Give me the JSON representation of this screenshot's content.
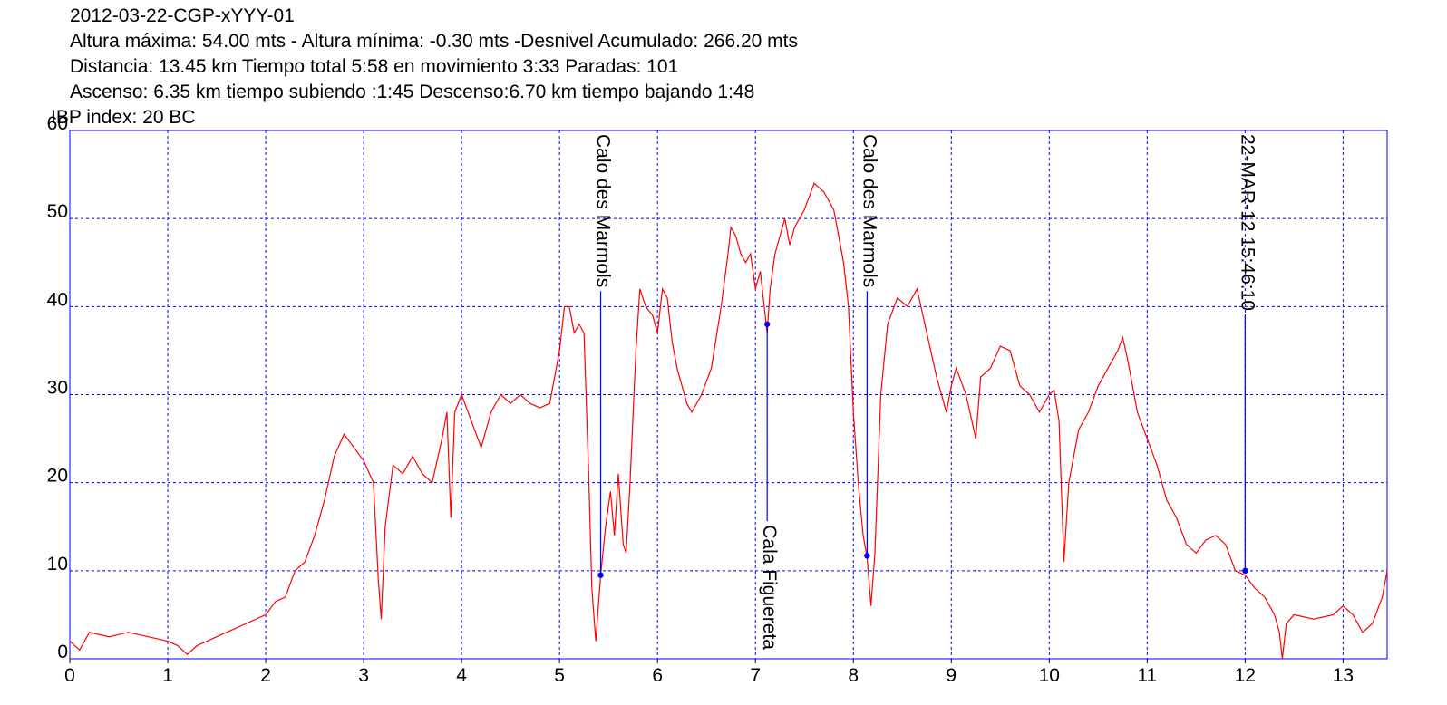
{
  "chart_data": {
    "type": "line",
    "title": "2012-03-22-CGP-xYYY-01",
    "subtitle": [
      "Altura máxima: 54.00 mts - Altura mínima: -0.30 mts -Desnivel Acumulado: 266.20 mts",
      "Distancia: 13.45 km  Tiempo total 5:58  en movimiento 3:33 Paradas: 101",
      "Ascenso: 6.35 km  tiempo subiendo :1:45  Descenso:6.70 km tiempo bajando 1:48",
      "IBP index: 20 BC"
    ],
    "color": "#ff0000",
    "x": [
      0,
      0.1,
      0.2,
      0.4,
      0.6,
      0.8,
      1.0,
      1.1,
      1.2,
      1.3,
      1.4,
      1.6,
      1.8,
      2.0,
      2.1,
      2.2,
      2.3,
      2.4,
      2.5,
      2.6,
      2.7,
      2.8,
      2.9,
      3.0,
      3.1,
      3.15,
      3.18,
      3.22,
      3.3,
      3.4,
      3.5,
      3.6,
      3.7,
      3.8,
      3.85,
      3.89,
      3.93,
      4.0,
      4.1,
      4.2,
      4.3,
      4.4,
      4.5,
      4.6,
      4.7,
      4.8,
      4.9,
      5.0,
      5.05,
      5.1,
      5.15,
      5.2,
      5.25,
      5.3,
      5.33,
      5.37,
      5.42,
      5.47,
      5.52,
      5.56,
      5.6,
      5.65,
      5.68,
      5.72,
      5.78,
      5.82,
      5.88,
      5.95,
      6.0,
      6.05,
      6.1,
      6.15,
      6.2,
      6.3,
      6.35,
      6.45,
      6.55,
      6.65,
      6.72,
      6.75,
      6.8,
      6.85,
      6.9,
      6.95,
      7.0,
      7.05,
      7.1,
      7.12,
      7.15,
      7.2,
      7.25,
      7.3,
      7.35,
      7.4,
      7.5,
      7.6,
      7.7,
      7.8,
      7.9,
      7.95,
      8.0,
      8.05,
      8.1,
      8.14,
      8.18,
      8.22,
      8.28,
      8.35,
      8.45,
      8.55,
      8.65,
      8.75,
      8.85,
      8.95,
      9.0,
      9.05,
      9.15,
      9.25,
      9.3,
      9.4,
      9.5,
      9.6,
      9.7,
      9.8,
      9.9,
      10.0,
      10.05,
      10.1,
      10.15,
      10.2,
      10.3,
      10.4,
      10.5,
      10.6,
      10.7,
      10.75,
      10.8,
      10.9,
      11.0,
      11.1,
      11.2,
      11.3,
      11.4,
      11.5,
      11.6,
      11.7,
      11.8,
      11.9,
      12.0,
      12.1,
      12.2,
      12.3,
      12.35,
      12.38,
      12.42,
      12.5,
      12.7,
      12.9,
      13.0,
      13.1,
      13.2,
      13.3,
      13.4,
      13.45
    ],
    "values": [
      2,
      1,
      3,
      2.5,
      3,
      2.5,
      2,
      1.5,
      0.5,
      1.5,
      2,
      3,
      4,
      5,
      6.5,
      7,
      10,
      11,
      14,
      18,
      23,
      25.5,
      24,
      22.5,
      20,
      9,
      4.5,
      15,
      22,
      21,
      23,
      21,
      20,
      25,
      28,
      16,
      28,
      30,
      27,
      24,
      28,
      30,
      29,
      30,
      29,
      28.5,
      29,
      35,
      40,
      40,
      37,
      38,
      37,
      20,
      8,
      2,
      9.5,
      15,
      19,
      14,
      21,
      13,
      12,
      20,
      35,
      42,
      40,
      39,
      37,
      42,
      41,
      36,
      33,
      29,
      28,
      30,
      33,
      40,
      46,
      49,
      48,
      46,
      45,
      46,
      42,
      44,
      39,
      37,
      42,
      46,
      48,
      50,
      47,
      49,
      51,
      54,
      53,
      51,
      45,
      40,
      28,
      20,
      14,
      11.5,
      6,
      12,
      30,
      38,
      41,
      40,
      42,
      37,
      32,
      28,
      31,
      33,
      30,
      25,
      32,
      33,
      35.5,
      35,
      31,
      30,
      28,
      30,
      30.5,
      27,
      11,
      20,
      26,
      28,
      31,
      33,
      35,
      36.5,
      34,
      28,
      25,
      22,
      18,
      16,
      13,
      12,
      13.5,
      14,
      13,
      10,
      9.5,
      8,
      7,
      5,
      3,
      0,
      4,
      5,
      4.5,
      5,
      6,
      5,
      3,
      4,
      7,
      10
    ],
    "xlim": [
      0,
      13.45
    ],
    "ylim": [
      0,
      60
    ],
    "xticks": [
      0,
      1,
      2,
      3,
      4,
      5,
      6,
      7,
      8,
      9,
      10,
      11,
      12,
      13
    ],
    "yticks": [
      0,
      10,
      20,
      30,
      40,
      50,
      60
    ],
    "grid": true,
    "waypoint_color": "#0000ff",
    "waypoints": [
      {
        "label": "Calo des Marmols",
        "x": 5.42,
        "y": 9.5
      },
      {
        "label": "Cala Figuereta",
        "x": 7.12,
        "y": 38
      },
      {
        "label": "Calo des Marmols",
        "x": 8.14,
        "y": 11.7
      },
      {
        "label": "22-MAR-12 15:46:10",
        "x": 12.0,
        "y": 10
      }
    ]
  }
}
